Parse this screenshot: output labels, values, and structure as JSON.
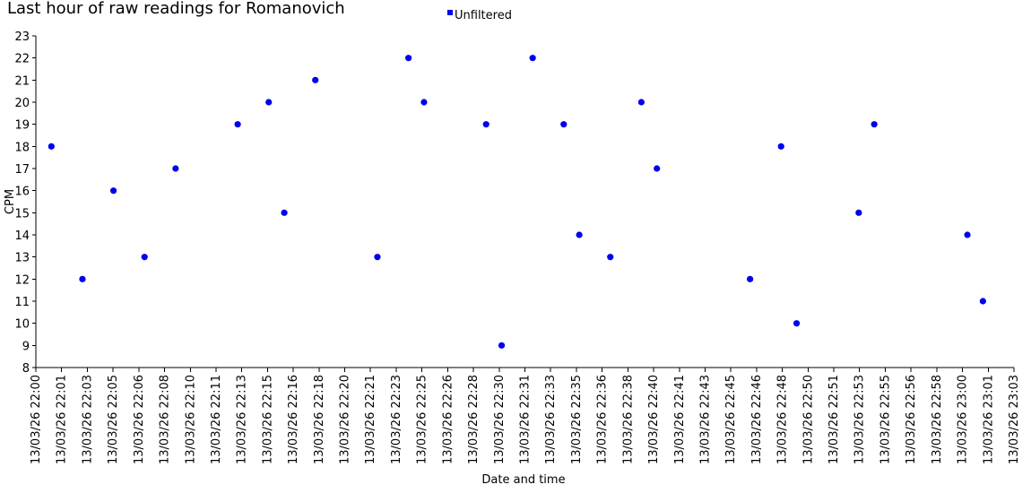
{
  "chart_data": {
    "type": "scatter",
    "title": "Last hour of raw readings for Romanovich",
    "xlabel": "Date and time",
    "ylabel": "CPM",
    "ylim": [
      8,
      23
    ],
    "yticks": [
      8,
      9,
      10,
      11,
      12,
      13,
      14,
      15,
      16,
      17,
      18,
      19,
      20,
      21,
      22,
      23
    ],
    "xticks": [
      "13/03/26 22:00",
      "13/03/26 22:01",
      "13/03/26 22:03",
      "13/03/26 22:05",
      "13/03/26 22:06",
      "13/03/26 22:08",
      "13/03/26 22:10",
      "13/03/26 22:11",
      "13/03/26 22:13",
      "13/03/26 22:15",
      "13/03/26 22:16",
      "13/03/26 22:18",
      "13/03/26 22:20",
      "13/03/26 22:21",
      "13/03/26 22:23",
      "13/03/26 22:25",
      "13/03/26 22:26",
      "13/03/26 22:28",
      "13/03/26 22:30",
      "13/03/26 22:31",
      "13/03/26 22:33",
      "13/03/26 22:35",
      "13/03/26 22:36",
      "13/03/26 22:38",
      "13/03/26 22:40",
      "13/03/26 22:41",
      "13/03/26 22:43",
      "13/03/26 22:45",
      "13/03/26 22:46",
      "13/03/26 22:48",
      "13/03/26 22:50",
      "13/03/26 22:51",
      "13/03/26 22:53",
      "13/03/26 22:55",
      "13/03/26 22:56",
      "13/03/26 22:58",
      "13/03/26 23:00",
      "13/03/26 23:01",
      "13/03/26 23:03"
    ],
    "legend": "top-center",
    "grid": false,
    "series": [
      {
        "name": "Unfiltered",
        "color": "#0000ee",
        "x": [
          "13/03/26 22:01",
          "13/03/26 22:03",
          "13/03/26 22:05",
          "13/03/26 22:07",
          "13/03/26 22:09",
          "13/03/26 22:13",
          "13/03/26 22:15",
          "13/03/26 22:16",
          "13/03/26 22:18",
          "13/03/26 22:22",
          "13/03/26 22:24",
          "13/03/26 22:25",
          "13/03/26 22:29",
          "13/03/26 22:30",
          "13/03/26 22:32",
          "13/03/26 22:34",
          "13/03/26 22:35",
          "13/03/26 22:37",
          "13/03/26 22:39",
          "13/03/26 22:40",
          "13/03/26 22:46",
          "13/03/26 22:48",
          "13/03/26 22:49",
          "13/03/26 22:53",
          "13/03/26 22:54",
          "13/03/26 23:00",
          "13/03/26 23:01"
        ],
        "y": [
          18,
          12,
          16,
          13,
          17,
          19,
          20,
          15,
          21,
          13,
          22,
          20,
          19,
          9,
          22,
          19,
          14,
          13,
          20,
          17,
          12,
          18,
          10,
          15,
          19,
          14,
          11
        ]
      }
    ]
  }
}
